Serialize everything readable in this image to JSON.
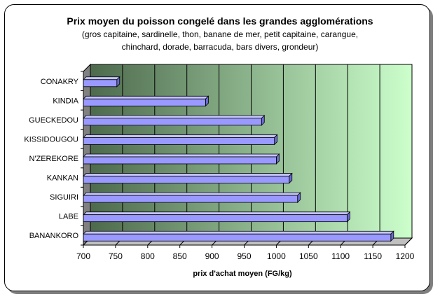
{
  "chart_data": {
    "type": "bar",
    "orientation": "horizontal",
    "title": "Prix moyen du poisson congelé dans les grandes agglomérations",
    "subtitle_lines": [
      "(gros capitaine, sardinelle, thon, banane de mer, petit capitaine, carangue,",
      "chinchard, dorade, barracuda, bars divers, grondeur)"
    ],
    "xlabel": "prix d'achat moyen (FG/kg)",
    "categories": [
      "CONAKRY",
      "KINDIA",
      "GUECKEDOU",
      "KISSIDOUGOU",
      "N'ZEREKORE",
      "KANKAN",
      "SIGUIRI",
      "LABE",
      "BANANKORO"
    ],
    "values": [
      752,
      890,
      977,
      997,
      1000,
      1020,
      1033,
      1110,
      1178
    ],
    "xlim": [
      700,
      1200
    ],
    "xticks": [
      "700",
      "750",
      "800",
      "850",
      "900",
      "950",
      "1000",
      "1050",
      "1100",
      "1150",
      "1200"
    ],
    "grid": true,
    "legend": "none",
    "colors": {
      "bar": "#9999ff",
      "bar_side": "#6a6ad0",
      "bar_top": "#c4c4ff",
      "background_dark": "#4d6a4d",
      "background_light": "#ccffcc"
    }
  }
}
